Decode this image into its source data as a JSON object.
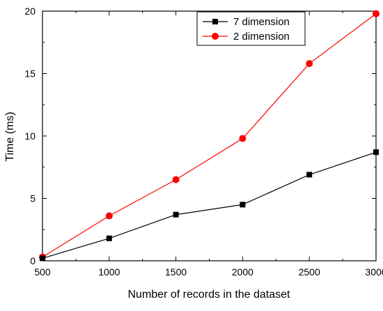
{
  "chart_data": {
    "type": "line",
    "xlabel": "Number of records in the dataset",
    "ylabel": "Time (ms)",
    "xlim": [
      500,
      3000
    ],
    "ylim": [
      0,
      20
    ],
    "x_ticks": [
      500,
      1000,
      1500,
      2000,
      2500,
      3000
    ],
    "y_ticks": [
      0,
      5,
      10,
      15,
      20
    ],
    "x_tick_labels": [
      "500",
      "1000",
      "1500",
      "2000",
      "2500",
      "3000"
    ],
    "y_tick_labels": [
      "0",
      "5",
      "10",
      "15",
      "20"
    ],
    "grid": false,
    "legend_position": "top-right",
    "series": [
      {
        "name": "7 dimension",
        "color": "#000000",
        "marker": "square",
        "x": [
          500,
          1000,
          1500,
          2000,
          2500,
          3000
        ],
        "values": [
          0.2,
          1.8,
          3.7,
          4.5,
          6.9,
          8.7
        ]
      },
      {
        "name": "2 dimension",
        "color": "#ff0000",
        "marker": "circle",
        "x": [
          500,
          1000,
          1500,
          2000,
          2500,
          3000
        ],
        "values": [
          0.3,
          3.6,
          6.5,
          9.8,
          15.8,
          19.8
        ]
      }
    ]
  }
}
